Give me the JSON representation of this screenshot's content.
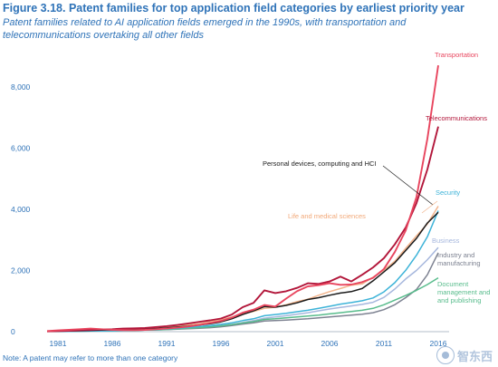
{
  "figure": {
    "title": "Figure 3.18. Patent families for top application field categories by earliest priority year",
    "subtitle": "Patent families related to AI application fields emerged in the 1990s, with transportation and telecommunications overtaking all other fields",
    "footnote": "Note: A patent may refer to more than one category"
  },
  "watermark": {
    "text": "智东西"
  },
  "chart_data": {
    "type": "line",
    "x": [
      1980,
      1981,
      1982,
      1983,
      1984,
      1985,
      1986,
      1987,
      1988,
      1989,
      1990,
      1991,
      1992,
      1993,
      1994,
      1995,
      1996,
      1997,
      1998,
      1999,
      2000,
      2001,
      2002,
      2003,
      2004,
      2005,
      2006,
      2007,
      2008,
      2009,
      2010,
      2011,
      2012,
      2013,
      2014,
      2015,
      2016
    ],
    "x_tick_labels": [
      "1981",
      "1986",
      "1991",
      "1996",
      "2001",
      "2006",
      "2011",
      "2016"
    ],
    "x_ticks": [
      1981,
      1986,
      1991,
      1996,
      2001,
      2006,
      2011,
      2016
    ],
    "y_ticks": [
      0,
      2000,
      4000,
      6000,
      8000
    ],
    "y_tick_labels": [
      "0",
      "2,000",
      "4,000",
      "6,000",
      "8,000"
    ],
    "ylim": [
      0,
      9000
    ],
    "xlim": [
      1980,
      2017
    ],
    "grid": false,
    "series": [
      {
        "name": "Transportation",
        "color": "#e8455e",
        "values": [
          20,
          40,
          60,
          80,
          100,
          80,
          60,
          50,
          50,
          60,
          80,
          100,
          130,
          170,
          220,
          280,
          350,
          460,
          620,
          720,
          870,
          820,
          1080,
          1320,
          1480,
          1520,
          1580,
          1530,
          1540,
          1620,
          1760,
          2050,
          2600,
          3300,
          4400,
          6300,
          8700
        ]
      },
      {
        "name": "Telecommunications",
        "color": "#b2163a",
        "values": [
          10,
          20,
          30,
          40,
          60,
          70,
          80,
          100,
          110,
          120,
          150,
          180,
          220,
          270,
          320,
          370,
          430,
          560,
          800,
          940,
          1350,
          1260,
          1320,
          1430,
          1580,
          1560,
          1640,
          1800,
          1640,
          1860,
          2100,
          2400,
          2850,
          3400,
          4200,
          5300,
          6700
        ]
      },
      {
        "name": "Personal devices, computing and HCI",
        "color": "#1a1a1a",
        "values": [
          10,
          15,
          20,
          30,
          40,
          50,
          60,
          70,
          80,
          90,
          100,
          120,
          150,
          180,
          220,
          260,
          320,
          420,
          560,
          680,
          820,
          800,
          860,
          940,
          1050,
          1110,
          1190,
          1260,
          1310,
          1410,
          1660,
          1950,
          2250,
          2650,
          3050,
          3550,
          3900
        ]
      },
      {
        "name": "Life and medical sciences",
        "color": "#f2b48c",
        "values": [
          10,
          15,
          20,
          30,
          40,
          50,
          60,
          70,
          80,
          100,
          120,
          150,
          180,
          220,
          260,
          320,
          390,
          480,
          580,
          660,
          760,
          800,
          880,
          980,
          1060,
          1190,
          1310,
          1410,
          1520,
          1560,
          1780,
          2010,
          2300,
          2720,
          3130,
          3520,
          4100
        ]
      },
      {
        "name": "Security",
        "color": "#3db3d8",
        "values": [
          5,
          10,
          10,
          15,
          20,
          25,
          30,
          40,
          50,
          60,
          70,
          90,
          110,
          140,
          170,
          200,
          240,
          290,
          360,
          420,
          520,
          560,
          600,
          650,
          700,
          760,
          830,
          900,
          950,
          1010,
          1100,
          1300,
          1600,
          2000,
          2500,
          3100,
          3950
        ]
      },
      {
        "name": "Business",
        "color": "#a6b7dd",
        "values": [
          5,
          10,
          10,
          15,
          20,
          25,
          30,
          35,
          40,
          50,
          60,
          70,
          90,
          110,
          130,
          160,
          200,
          240,
          300,
          360,
          440,
          480,
          520,
          570,
          620,
          680,
          740,
          790,
          840,
          890,
          960,
          1120,
          1390,
          1720,
          2000,
          2350,
          2750
        ]
      },
      {
        "name": "Industry and manufacturing",
        "color": "#7d8291",
        "values": [
          5,
          10,
          10,
          15,
          20,
          25,
          30,
          35,
          40,
          50,
          55,
          65,
          80,
          95,
          110,
          130,
          160,
          200,
          250,
          290,
          350,
          360,
          380,
          400,
          420,
          450,
          480,
          510,
          540,
          570,
          620,
          720,
          880,
          1110,
          1380,
          1860,
          2580
        ]
      },
      {
        "name": "Document management and publishing",
        "color": "#58bc8c",
        "values": [
          5,
          10,
          10,
          15,
          20,
          25,
          30,
          35,
          40,
          50,
          60,
          70,
          90,
          110,
          130,
          160,
          190,
          230,
          280,
          330,
          400,
          420,
          450,
          480,
          510,
          540,
          580,
          620,
          660,
          700,
          760,
          880,
          1030,
          1180,
          1350,
          1540,
          1760
        ]
      }
    ],
    "annotations": [
      {
        "text": "Transportation",
        "color": "#e8455e"
      },
      {
        "text": "Telecommunications",
        "color": "#b2163a"
      },
      {
        "text": "Personal devices, computing and HCI",
        "color": "#1a1a1a"
      },
      {
        "text": "Security",
        "color": "#3db3d8"
      },
      {
        "text": "Life and medical sciences",
        "color": "#f2a878"
      },
      {
        "text": "Business",
        "color": "#a6b7dd"
      },
      {
        "text": "Industry and",
        "color": "#7d8291"
      },
      {
        "text": "manufacturing",
        "color": "#7d8291"
      },
      {
        "text": "Document",
        "color": "#58bc8c"
      },
      {
        "text": "management and",
        "color": "#58bc8c"
      },
      {
        "text": "and publishing",
        "color": "#58bc8c"
      }
    ]
  }
}
